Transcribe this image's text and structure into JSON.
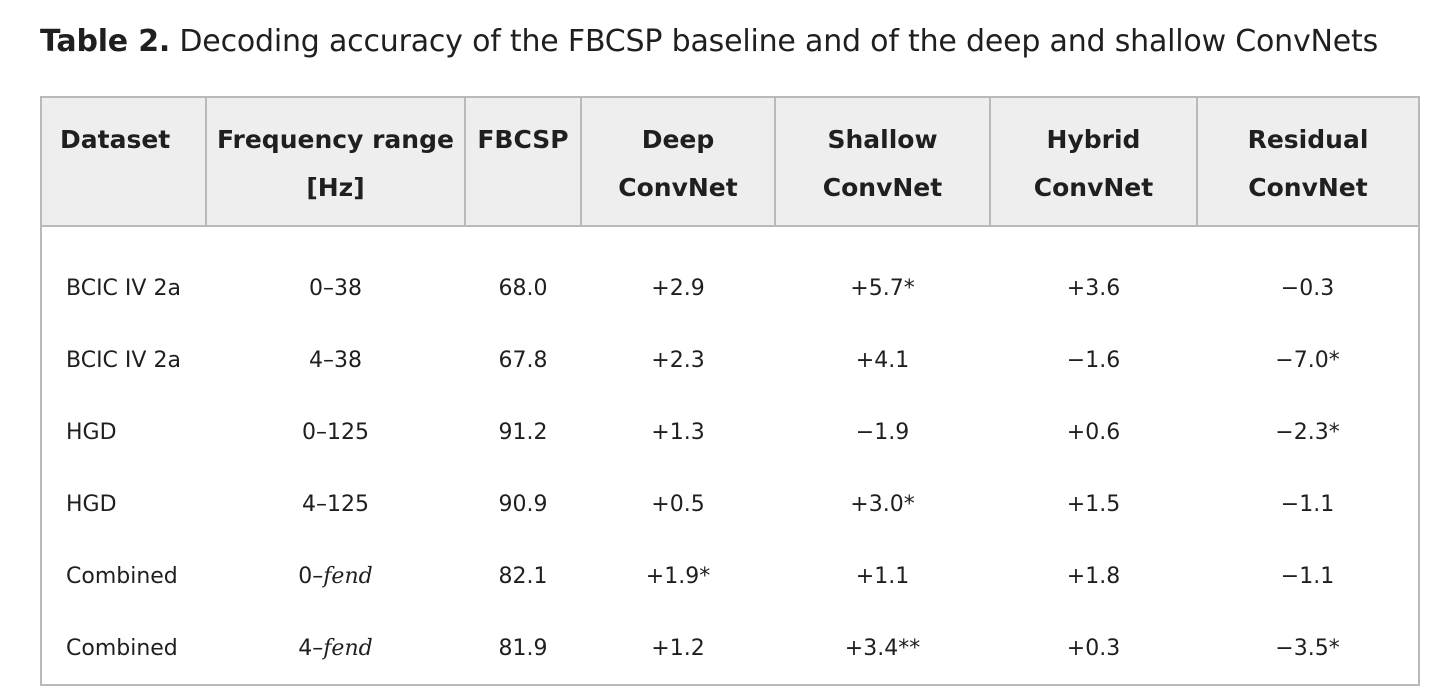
{
  "caption": {
    "label": "Table 2.",
    "text": "Decoding accuracy of the FBCSP baseline and of the deep and shallow ConvNets"
  },
  "table": {
    "headers": [
      [
        "Dataset"
      ],
      [
        "Frequency range",
        "[Hz]"
      ],
      [
        "FBCSP"
      ],
      [
        "Deep",
        "ConvNet"
      ],
      [
        "Shallow",
        "ConvNet"
      ],
      [
        "Hybrid",
        "ConvNet"
      ],
      [
        "Residual",
        "ConvNet"
      ]
    ],
    "rows": [
      {
        "dataset": "BCIC IV 2a",
        "freq_start": "0–38",
        "freq_end": "",
        "fbcsp": "68.0",
        "deep": "+2.9",
        "shallow": "+5.7*",
        "hybrid": "+3.6",
        "residual": "−0.3"
      },
      {
        "dataset": "BCIC IV 2a",
        "freq_start": "4–38",
        "freq_end": "",
        "fbcsp": "67.8",
        "deep": "+2.3",
        "shallow": "+4.1",
        "hybrid": "−1.6",
        "residual": "−7.0*"
      },
      {
        "dataset": "HGD",
        "freq_start": "0–125",
        "freq_end": "",
        "fbcsp": "91.2",
        "deep": "+1.3",
        "shallow": "−1.9",
        "hybrid": "+0.6",
        "residual": "−2.3*"
      },
      {
        "dataset": "HGD",
        "freq_start": "4–125",
        "freq_end": "",
        "fbcsp": "90.9",
        "deep": "+0.5",
        "shallow": "+3.0*",
        "hybrid": "+1.5",
        "residual": "−1.1"
      },
      {
        "dataset": "Combined",
        "freq_start": "0–",
        "freq_end": "fend",
        "fbcsp": "82.1",
        "deep": "+1.9*",
        "shallow": "+1.1",
        "hybrid": "+1.8",
        "residual": "−1.1"
      },
      {
        "dataset": "Combined",
        "freq_start": "4–",
        "freq_end": "fend",
        "fbcsp": "81.9",
        "deep": "+1.2",
        "shallow": "+3.4**",
        "hybrid": "+0.3",
        "residual": "−3.5*"
      }
    ]
  }
}
